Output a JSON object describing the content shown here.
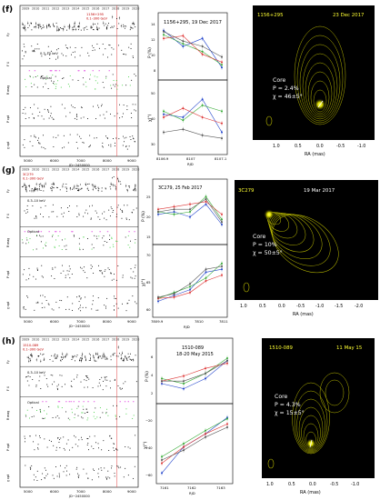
{
  "figure": {
    "panels": [
      {
        "label": "(f)",
        "source": "1156+295",
        "lc": {
          "years": [
            "2009",
            "2010",
            "2011",
            "2012",
            "2013",
            "2014",
            "2015",
            "2016",
            "2017",
            "2018",
            "2019",
            "2020"
          ],
          "gamma_label": "0.1–300 GeV",
          "xray_label": "0.3–10 keV",
          "optical_label": "Optical",
          "xticks": [
            "5000",
            "6000",
            "7000",
            "8000",
            "9000"
          ],
          "xlabel": "JD−2450000",
          "ylabels": [
            "Fγ",
            "F X",
            "R mag",
            "P opt",
            "χ opt"
          ]
        },
        "pol": {
          "title": "1156+295, 19 Dec 2017",
          "ylabel_top": "P (%)",
          "ylabel_bottom": "χ(°)",
          "xticks": [
            "8106.9",
            "8107",
            "8107.1"
          ],
          "xlabel": "RJD",
          "p_yticks": [
            "8",
            "10",
            "12",
            "14"
          ],
          "chi_yticks": [
            "30",
            "40",
            "50"
          ]
        },
        "vlbi": {
          "name": "1156+295",
          "date": "23 Dec 2017",
          "core": "Core",
          "p": "P = 2.4%",
          "chi": "χ = 46±5°",
          "xticks": [
            "1.0",
            "0.5",
            "0.0",
            "-0.5",
            "-1.0"
          ],
          "yticks": [
            "1.0",
            "0.5",
            "0.0",
            "-0.5",
            "-1.0"
          ],
          "xlabel": "RA (mas)",
          "ylabel": "Dec (mas)"
        }
      },
      {
        "label": "(g)",
        "source": "3C279",
        "lc": {
          "years": [
            "2009",
            "2010",
            "2011",
            "2012",
            "2013",
            "2014",
            "2015",
            "2016",
            "2017",
            "2018",
            "2019",
            "2020"
          ],
          "gamma_label": "0.1–300 GeV",
          "xray_label": "0.3–10 keV",
          "optical_label": "Optical",
          "xticks": [
            "5000",
            "6000",
            "7000",
            "8000",
            "9000"
          ],
          "xlabel": "JD−2450000",
          "ylabels": [
            "Fγ",
            "F X",
            "R mag",
            "P opt",
            "χ opt"
          ]
        },
        "pol": {
          "title": "3C279, 25 Feb 2017",
          "ylabel_top": "P (%)",
          "ylabel_bottom": "χ(°)",
          "xticks": [
            "7809.9",
            "7810",
            "7811"
          ],
          "xlabel": "RJD",
          "p_yticks": [
            "15",
            "20",
            "25"
          ],
          "chi_yticks": [
            "60",
            "65",
            "70"
          ]
        },
        "vlbi": {
          "name": "3C279",
          "date": "19 Mar 2017",
          "core": "Core",
          "p": "P = 10%",
          "chi": "χ = 50±5°",
          "xticks": [
            "1.0",
            "0.5",
            "0.0",
            "-0.5",
            "-1.0",
            "-1.5",
            "-2.0"
          ],
          "yticks": [
            "1.0",
            "0.5",
            "0.0",
            "-0.5",
            "-1.0"
          ],
          "xlabel": "RA (mas)",
          "ylabel": "Dec (mas)"
        }
      },
      {
        "label": "(h)",
        "source": "1510-089",
        "lc": {
          "years": [
            "2009",
            "2010",
            "2011",
            "2012",
            "2013",
            "2014",
            "2015",
            "2016",
            "2017",
            "2018",
            "2019",
            "2020"
          ],
          "gamma_label": "0.1–300 GeV",
          "xray_label": "0.3–10 keV",
          "optical_label": "Optical",
          "xticks": [
            "5000",
            "6000",
            "7000",
            "8000",
            "9000"
          ],
          "xlabel": "JD−2450000",
          "ylabels": [
            "Fγ",
            "F X",
            "R mag",
            "P opt",
            "χ opt"
          ]
        },
        "pol": {
          "title": "1510-089",
          "subtitle": "18-20 May 2015",
          "ylabel_top": "P (%)",
          "ylabel_bottom": "χ(°)",
          "xticks": [
            "7161",
            "7162",
            "7163"
          ],
          "xlabel": "RJD",
          "p_yticks": [
            "2",
            "4",
            "6"
          ],
          "chi_yticks": [
            "−60",
            "−40",
            "−20"
          ]
        },
        "vlbi": {
          "name": "1510-089",
          "date": "11 May 15",
          "core": "Core",
          "p": "P = 4.3%",
          "chi": "χ = 15±5°",
          "xticks": [
            "1.0",
            "0.5",
            "0.0",
            "-0.5",
            "-1.0"
          ],
          "yticks": [
            "2.0",
            "1.5",
            "1.0",
            "0.5",
            "0.0",
            "-0.5",
            "-1.0"
          ],
          "xlabel": "RA (mas)",
          "ylabel": "Dec (mas)"
        }
      }
    ]
  }
}
